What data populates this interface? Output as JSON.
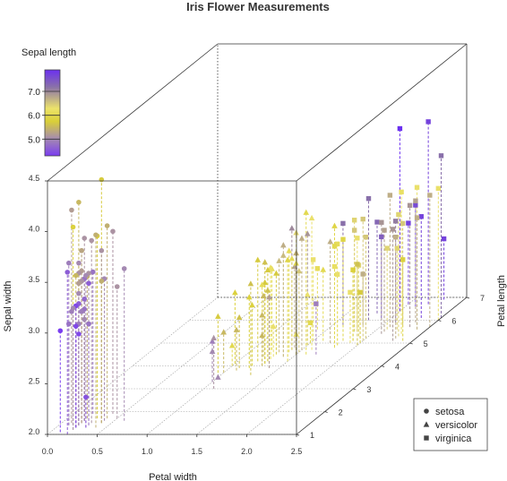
{
  "chart_data": {
    "type": "scatter",
    "title": "Iris Flower Measurements",
    "xlabel": "Petal width",
    "ylabel": "Sepal width",
    "zlabel": "Petal length",
    "xlim": [
      0,
      2.5
    ],
    "ylim": [
      2.0,
      4.5
    ],
    "zlim": [
      1,
      7
    ],
    "xticks": [
      "0.0",
      "0.5",
      "1.0",
      "1.5",
      "2.0",
      "2.5"
    ],
    "yticks": [
      "2.0",
      "2.5",
      "3.0",
      "3.5",
      "4.0",
      "4.5"
    ],
    "zticks": [
      "1",
      "2",
      "3",
      "4",
      "5",
      "6",
      "7"
    ],
    "colorbar": {
      "title": "Sepal length",
      "variable": "sepal_length",
      "range": [
        4.3,
        7.9
      ],
      "ticks": [
        "5.0",
        "6.0",
        "7.0"
      ],
      "colors": [
        "#7a3df0",
        "#a58bb0",
        "#d9cf38",
        "#ece36a",
        "#8a72a8",
        "#6b30f0"
      ]
    },
    "legend": {
      "position": "bottom-right",
      "entries": [
        {
          "name": "setosa",
          "marker": "circle"
        },
        {
          "name": "versicolor",
          "marker": "triangle"
        },
        {
          "name": "virginica",
          "marker": "square"
        }
      ]
    },
    "series": [
      {
        "name": "setosa",
        "marker": "circle",
        "fields": [
          "sepal_length",
          "sepal_width",
          "petal_length",
          "petal_width"
        ],
        "points": [
          [
            5.1,
            3.5,
            1.4,
            0.2
          ],
          [
            4.9,
            3.0,
            1.4,
            0.2
          ],
          [
            4.7,
            3.2,
            1.3,
            0.2
          ],
          [
            4.6,
            3.1,
            1.5,
            0.2
          ],
          [
            5.0,
            3.6,
            1.4,
            0.2
          ],
          [
            5.4,
            3.9,
            1.7,
            0.4
          ],
          [
            4.6,
            3.4,
            1.4,
            0.3
          ],
          [
            5.0,
            3.4,
            1.5,
            0.2
          ],
          [
            4.4,
            2.9,
            1.4,
            0.2
          ],
          [
            4.9,
            3.1,
            1.5,
            0.1
          ],
          [
            5.4,
            3.7,
            1.5,
            0.2
          ],
          [
            4.8,
            3.4,
            1.6,
            0.2
          ],
          [
            4.8,
            3.0,
            1.4,
            0.1
          ],
          [
            4.3,
            3.0,
            1.1,
            0.1
          ],
          [
            5.8,
            4.0,
            1.2,
            0.2
          ],
          [
            5.7,
            4.4,
            1.5,
            0.4
          ],
          [
            5.4,
            3.9,
            1.3,
            0.4
          ],
          [
            5.1,
            3.5,
            1.4,
            0.3
          ],
          [
            5.7,
            3.8,
            1.7,
            0.3
          ],
          [
            5.1,
            3.8,
            1.5,
            0.3
          ],
          [
            5.4,
            3.4,
            1.7,
            0.2
          ],
          [
            5.1,
            3.7,
            1.5,
            0.4
          ],
          [
            4.6,
            3.6,
            1.0,
            0.2
          ],
          [
            5.1,
            3.3,
            1.7,
            0.5
          ],
          [
            4.8,
            3.4,
            1.9,
            0.2
          ],
          [
            5.0,
            3.0,
            1.6,
            0.2
          ],
          [
            5.0,
            3.4,
            1.6,
            0.4
          ],
          [
            5.2,
            3.5,
            1.5,
            0.2
          ],
          [
            5.2,
            3.4,
            1.4,
            0.2
          ],
          [
            4.7,
            3.2,
            1.6,
            0.2
          ],
          [
            4.8,
            3.1,
            1.6,
            0.2
          ],
          [
            5.4,
            3.4,
            1.5,
            0.4
          ],
          [
            5.2,
            4.1,
            1.5,
            0.1
          ],
          [
            5.5,
            4.2,
            1.4,
            0.2
          ],
          [
            4.9,
            3.1,
            1.5,
            0.2
          ],
          [
            5.0,
            3.2,
            1.2,
            0.2
          ],
          [
            5.5,
            3.5,
            1.3,
            0.2
          ],
          [
            4.9,
            3.6,
            1.4,
            0.1
          ],
          [
            4.4,
            3.0,
            1.3,
            0.2
          ],
          [
            5.1,
            3.4,
            1.5,
            0.2
          ],
          [
            5.0,
            3.5,
            1.3,
            0.3
          ],
          [
            4.5,
            2.3,
            1.3,
            0.3
          ],
          [
            4.4,
            3.2,
            1.3,
            0.2
          ],
          [
            5.0,
            3.5,
            1.6,
            0.6
          ],
          [
            5.1,
            3.8,
            1.9,
            0.4
          ],
          [
            4.8,
            3.0,
            1.4,
            0.3
          ],
          [
            5.1,
            3.8,
            1.6,
            0.2
          ],
          [
            4.6,
            3.2,
            1.4,
            0.2
          ],
          [
            5.3,
            3.7,
            1.5,
            0.2
          ],
          [
            5.0,
            3.3,
            1.4,
            0.2
          ]
        ]
      },
      {
        "name": "versicolor",
        "marker": "triangle",
        "fields": [
          "sepal_length",
          "sepal_width",
          "petal_length",
          "petal_width"
        ],
        "points": [
          [
            7.0,
            3.2,
            4.7,
            1.4
          ],
          [
            6.4,
            3.2,
            4.5,
            1.5
          ],
          [
            6.9,
            3.1,
            4.9,
            1.5
          ],
          [
            5.5,
            2.3,
            4.0,
            1.3
          ],
          [
            6.5,
            2.8,
            4.6,
            1.5
          ],
          [
            5.7,
            2.8,
            4.5,
            1.3
          ],
          [
            6.3,
            3.3,
            4.7,
            1.6
          ],
          [
            4.9,
            2.4,
            3.3,
            1.0
          ],
          [
            6.6,
            2.9,
            4.6,
            1.3
          ],
          [
            5.2,
            2.7,
            3.9,
            1.4
          ],
          [
            5.0,
            2.0,
            3.5,
            1.0
          ],
          [
            5.9,
            3.0,
            4.2,
            1.5
          ],
          [
            6.0,
            2.2,
            4.0,
            1.0
          ],
          [
            6.1,
            2.9,
            4.7,
            1.4
          ],
          [
            5.6,
            2.9,
            3.6,
            1.3
          ],
          [
            6.7,
            3.1,
            4.4,
            1.4
          ],
          [
            5.6,
            3.0,
            4.5,
            1.5
          ],
          [
            5.8,
            2.7,
            4.1,
            1.0
          ],
          [
            6.2,
            2.2,
            4.5,
            1.5
          ],
          [
            5.6,
            2.5,
            3.9,
            1.1
          ],
          [
            5.9,
            3.2,
            4.8,
            1.8
          ],
          [
            6.1,
            2.8,
            4.0,
            1.3
          ],
          [
            6.3,
            2.5,
            4.9,
            1.5
          ],
          [
            6.1,
            2.8,
            4.7,
            1.2
          ],
          [
            6.4,
            2.9,
            4.3,
            1.3
          ],
          [
            6.6,
            3.0,
            4.4,
            1.4
          ],
          [
            6.8,
            2.8,
            4.8,
            1.4
          ],
          [
            6.7,
            3.0,
            5.0,
            1.7
          ],
          [
            6.0,
            2.9,
            4.5,
            1.5
          ],
          [
            5.7,
            2.6,
            3.5,
            1.0
          ],
          [
            5.5,
            2.4,
            3.8,
            1.1
          ],
          [
            5.5,
            2.4,
            3.7,
            1.0
          ],
          [
            5.8,
            2.7,
            3.9,
            1.2
          ],
          [
            6.0,
            2.7,
            5.1,
            1.6
          ],
          [
            5.4,
            3.0,
            4.5,
            1.5
          ],
          [
            6.0,
            3.4,
            4.5,
            1.6
          ],
          [
            6.7,
            3.1,
            4.7,
            1.5
          ],
          [
            6.3,
            2.3,
            4.4,
            1.3
          ],
          [
            5.6,
            3.0,
            4.1,
            1.3
          ],
          [
            5.5,
            2.5,
            4.0,
            1.3
          ],
          [
            5.5,
            2.6,
            4.4,
            1.2
          ],
          [
            6.1,
            3.0,
            4.6,
            1.4
          ],
          [
            5.8,
            2.6,
            4.0,
            1.2
          ],
          [
            5.0,
            2.3,
            3.3,
            1.0
          ],
          [
            5.6,
            2.7,
            4.2,
            1.3
          ],
          [
            5.7,
            3.0,
            4.2,
            1.2
          ],
          [
            5.7,
            2.9,
            4.2,
            1.3
          ],
          [
            6.2,
            2.9,
            4.3,
            1.3
          ],
          [
            5.1,
            2.5,
            3.0,
            1.1
          ],
          [
            5.7,
            2.8,
            4.1,
            1.3
          ]
        ]
      },
      {
        "name": "virginica",
        "marker": "square",
        "fields": [
          "sepal_length",
          "sepal_width",
          "petal_length",
          "petal_width"
        ],
        "points": [
          [
            6.3,
            3.3,
            6.0,
            2.5
          ],
          [
            5.8,
            2.7,
            5.1,
            1.9
          ],
          [
            7.1,
            3.0,
            5.9,
            2.1
          ],
          [
            6.3,
            2.9,
            5.6,
            1.8
          ],
          [
            6.5,
            3.0,
            5.8,
            2.2
          ],
          [
            7.6,
            3.0,
            6.6,
            2.1
          ],
          [
            4.9,
            2.5,
            4.5,
            1.7
          ],
          [
            7.3,
            2.9,
            6.3,
            1.8
          ],
          [
            6.7,
            2.5,
            5.8,
            1.8
          ],
          [
            7.2,
            3.6,
            6.1,
            2.5
          ],
          [
            6.5,
            3.2,
            5.1,
            2.0
          ],
          [
            6.4,
            2.7,
            5.3,
            1.9
          ],
          [
            6.8,
            3.0,
            5.5,
            2.1
          ],
          [
            5.7,
            2.5,
            5.0,
            2.0
          ],
          [
            5.8,
            2.8,
            5.1,
            2.4
          ],
          [
            6.4,
            3.2,
            5.3,
            2.3
          ],
          [
            6.5,
            3.0,
            5.5,
            1.8
          ],
          [
            7.7,
            3.8,
            6.7,
            2.2
          ],
          [
            7.7,
            2.6,
            6.9,
            2.3
          ],
          [
            6.0,
            2.2,
            5.0,
            1.5
          ],
          [
            6.9,
            3.2,
            5.7,
            2.3
          ],
          [
            5.6,
            2.8,
            4.9,
            2.0
          ],
          [
            7.7,
            2.8,
            6.7,
            2.0
          ],
          [
            6.3,
            2.7,
            4.9,
            1.8
          ],
          [
            6.7,
            3.3,
            5.7,
            2.1
          ],
          [
            7.2,
            3.2,
            6.0,
            1.8
          ],
          [
            6.2,
            2.8,
            4.8,
            1.8
          ],
          [
            6.1,
            3.0,
            4.9,
            1.8
          ],
          [
            6.4,
            2.8,
            5.6,
            2.1
          ],
          [
            7.2,
            3.0,
            5.8,
            1.6
          ],
          [
            7.4,
            2.8,
            6.1,
            1.9
          ],
          [
            7.9,
            3.8,
            6.4,
            2.0
          ],
          [
            6.4,
            2.8,
            5.6,
            2.2
          ],
          [
            6.3,
            2.8,
            5.1,
            1.5
          ],
          [
            6.1,
            2.6,
            5.6,
            1.4
          ],
          [
            7.7,
            3.0,
            6.1,
            2.3
          ],
          [
            6.3,
            3.4,
            5.6,
            2.4
          ],
          [
            6.4,
            3.1,
            5.5,
            1.8
          ],
          [
            6.0,
            3.0,
            4.8,
            1.8
          ],
          [
            6.9,
            3.1,
            5.4,
            2.1
          ],
          [
            6.7,
            3.1,
            5.6,
            2.4
          ],
          [
            6.9,
            3.1,
            5.1,
            2.3
          ],
          [
            5.8,
            2.7,
            5.1,
            1.9
          ],
          [
            6.8,
            3.2,
            5.9,
            2.3
          ],
          [
            6.7,
            3.3,
            5.7,
            2.5
          ],
          [
            6.7,
            3.0,
            5.2,
            2.3
          ],
          [
            6.3,
            2.5,
            5.0,
            1.9
          ],
          [
            6.5,
            3.0,
            5.2,
            2.0
          ],
          [
            6.2,
            3.4,
            5.4,
            2.3
          ],
          [
            5.9,
            3.0,
            5.1,
            1.8
          ]
        ]
      }
    ]
  }
}
